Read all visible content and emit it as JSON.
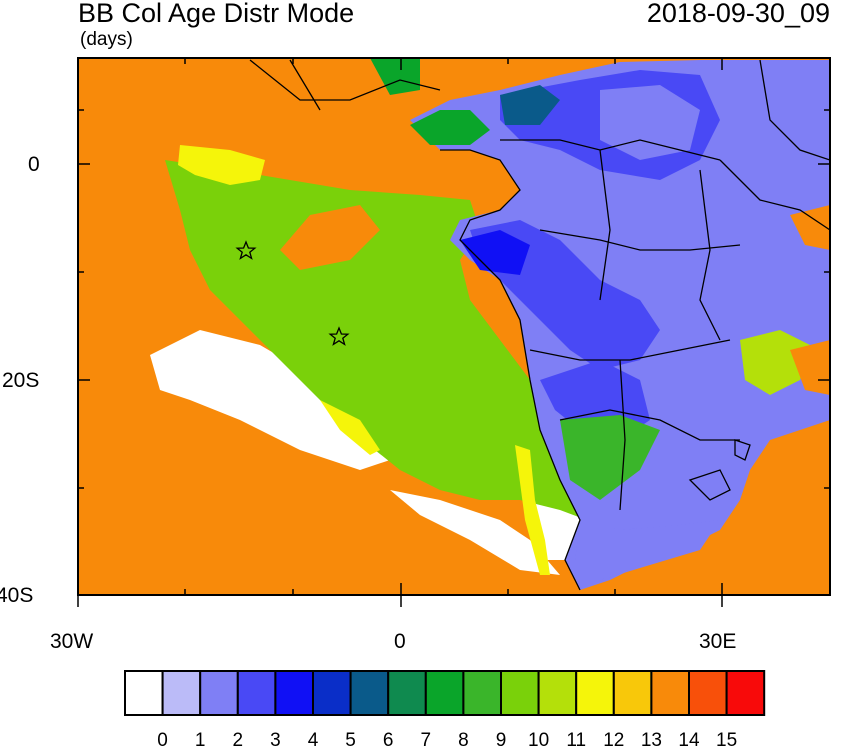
{
  "header": {
    "title": "BB Col Age Distr Mode",
    "units": "(days)",
    "timestamp": "2018-09-30_09"
  },
  "axes": {
    "lat_labels": [
      "0",
      "20S",
      "40S"
    ],
    "lon_labels": [
      "30W",
      "0",
      "30E"
    ]
  },
  "colorbar": {
    "labels": [
      "0",
      "1",
      "2",
      "3",
      "4",
      "5",
      "6",
      "7",
      "8",
      "9",
      "10",
      "11",
      "12",
      "13",
      "14",
      "15"
    ],
    "colors": [
      "#ffffff",
      "#bbbbf8",
      "#7f7ff5",
      "#4949f5",
      "#1010f5",
      "#0a2ec8",
      "#0a5a8a",
      "#0f8a4f",
      "#0aa52a",
      "#3ab52a",
      "#7ad10a",
      "#b4e00a",
      "#f5f50a",
      "#f8c80a",
      "#f88a0a",
      "#f8500a",
      "#f80a0a"
    ]
  },
  "map": {
    "ocean_color": "#f88a0a",
    "markers": [
      {
        "name": "star-1",
        "lon": -14.3,
        "lat": -8.0
      },
      {
        "name": "star-2",
        "lon": -5.7,
        "lat": -16.0
      }
    ]
  }
}
